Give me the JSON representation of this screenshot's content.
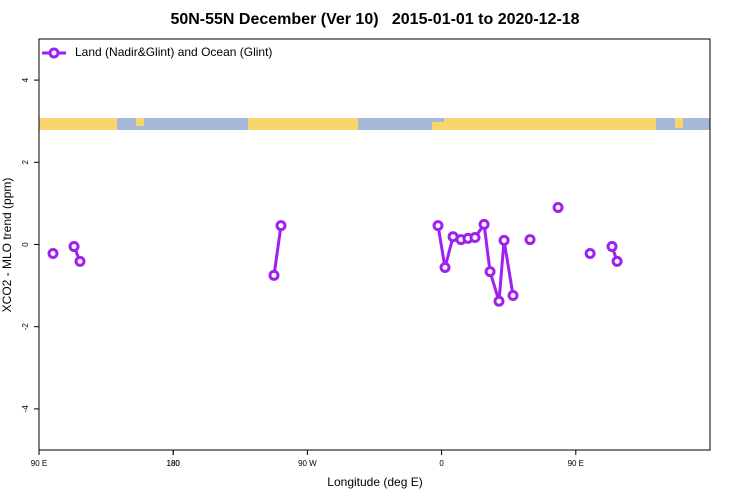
{
  "chart_data": {
    "type": "line",
    "title": "50N-55N December (Ver 10)   2015-01-01 to 2020-12-18",
    "x_label": "Longitude (deg E)",
    "y_label": "XCO2 - MLO trend (ppm)",
    "x": [
      99.4,
      null,
      113.5,
      117.5,
      null,
      247.6,
      252.3,
      null,
      357.6,
      362.3,
      367.7,
      373.0,
      377.7,
      382.4,
      388.5,
      392.5,
      398.5,
      401.9,
      407.9,
      null,
      419.3,
      null,
      438.1,
      null,
      459.6,
      null,
      474.3,
      477.7
    ],
    "series": [
      {
        "name": "Land (Nadir&Glint) and Ocean (Glint)",
        "color": "#a020f0",
        "values": [
          -0.22,
          null,
          -0.05,
          -0.41,
          null,
          -0.75,
          0.46,
          null,
          0.46,
          -0.56,
          0.19,
          0.12,
          0.15,
          0.17,
          0.49,
          -0.66,
          -1.38,
          0.1,
          -1.24,
          null,
          0.12,
          null,
          0.9,
          null,
          -0.22,
          null,
          -0.05,
          -0.41
        ]
      }
    ],
    "xlim": [
      90,
      540
    ],
    "xticks": [
      {
        "value": 90,
        "label": "90 E"
      },
      180,
      {
        "value": 270,
        "label": "90 W"
      },
      {
        "value": 360,
        "label": "0"
      },
      {
        "value": 450,
        "label": "90 E"
      },
      180
    ],
    "ylim": [
      -5,
      5
    ],
    "yticks": [
      -4,
      -2,
      0,
      2,
      4
    ],
    "legend": "top-left"
  }
}
